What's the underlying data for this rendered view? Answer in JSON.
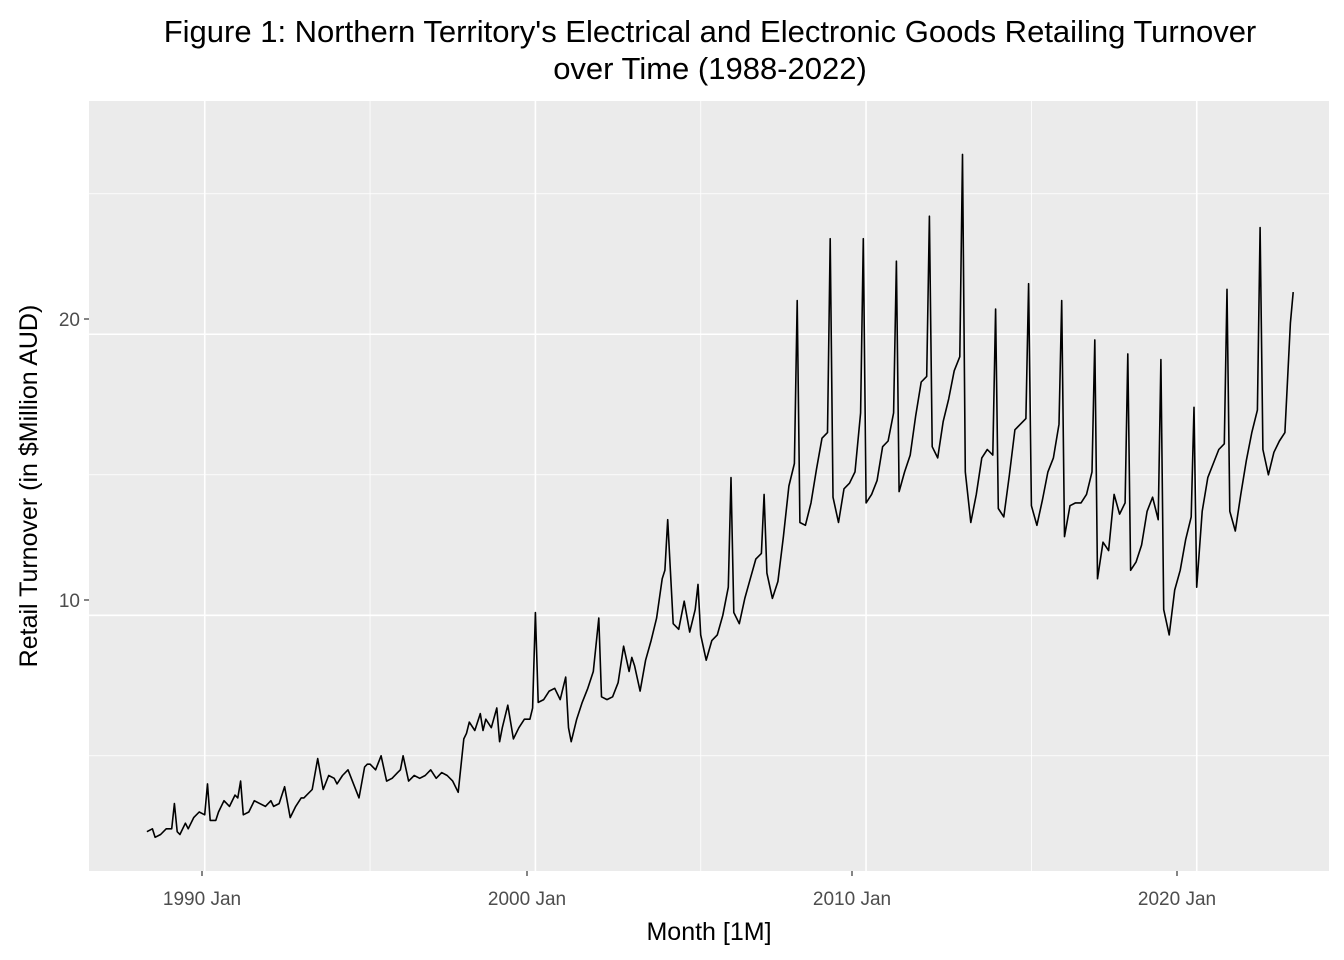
{
  "chart_data": {
    "type": "line",
    "title_line1": "Figure 1: Northern Territory's Electrical and Electronic Goods Retailing Turnover",
    "title_line2": "over Time (1988-2022)",
    "xlabel": "Month [1M]",
    "ylabel": "Retail Turnover (in $Million AUD)",
    "x_ticks": [
      "1990 Jan",
      "2000 Jan",
      "2010 Jan",
      "2020 Jan"
    ],
    "y_ticks": [
      "10",
      "20"
    ],
    "y_tick_values": [
      10,
      20
    ],
    "xlim": [
      "1986-07",
      "2024-01"
    ],
    "ylim": [
      0.9,
      28.3
    ],
    "grid": true,
    "background": "#ebebeb",
    "gridline_color": "#ffffff",
    "line_color": "#000000",
    "series": [
      {
        "x": [
          "1988-04",
          "1988-06",
          "1988-07",
          "1988-09",
          "1988-11",
          "1989-01",
          "1989-02",
          "1989-03",
          "1989-04",
          "1989-06",
          "1989-07",
          "1989-09",
          "1989-11",
          "1990-01",
          "1990-02",
          "1990-03",
          "1990-05",
          "1990-06",
          "1990-08",
          "1990-10",
          "1990-12",
          "1991-01",
          "1991-02",
          "1991-03",
          "1991-05",
          "1991-07",
          "1991-09",
          "1991-11",
          "1992-01",
          "1992-02",
          "1992-04",
          "1992-06",
          "1992-08",
          "1992-10",
          "1992-12",
          "1993-01",
          "1993-02",
          "1993-04",
          "1993-06",
          "1993-08",
          "1993-10",
          "1993-12",
          "1994-01",
          "1994-03",
          "1994-05",
          "1994-07",
          "1994-09",
          "1994-11",
          "1994-12",
          "1995-01",
          "1995-03",
          "1995-05",
          "1995-07",
          "1995-09",
          "1995-11",
          "1995-12",
          "1996-01",
          "1996-03",
          "1996-05",
          "1996-07",
          "1996-09",
          "1996-11",
          "1997-01",
          "1997-03",
          "1997-05",
          "1997-07",
          "1997-09",
          "1997-11",
          "1997-12",
          "1998-01",
          "1998-03",
          "1998-05",
          "1998-06",
          "1998-07",
          "1998-09",
          "1998-11",
          "1998-12",
          "1999-01",
          "1999-03",
          "1999-05",
          "1999-07",
          "1999-09",
          "1999-11",
          "1999-12",
          "2000-01",
          "2000-02",
          "2000-04",
          "2000-06",
          "2000-08",
          "2000-10",
          "2000-12",
          "2001-01",
          "2001-02",
          "2001-04",
          "2001-06",
          "2001-08",
          "2001-10",
          "2001-12",
          "2002-01",
          "2002-03",
          "2002-05",
          "2002-07",
          "2002-09",
          "2002-11",
          "2002-12",
          "2003-01",
          "2003-03",
          "2003-05",
          "2003-07",
          "2003-09",
          "2003-11",
          "2003-12",
          "2004-01",
          "2004-03",
          "2004-05",
          "2004-07",
          "2004-09",
          "2004-11",
          "2004-12",
          "2005-01",
          "2005-03",
          "2005-05",
          "2005-07",
          "2005-09",
          "2005-11",
          "2005-12",
          "2006-01",
          "2006-03",
          "2006-05",
          "2006-07",
          "2006-09",
          "2006-11",
          "2006-12",
          "2007-01",
          "2007-03",
          "2007-05",
          "2007-07",
          "2007-09",
          "2007-11",
          "2007-12",
          "2008-01",
          "2008-03",
          "2008-05",
          "2008-07",
          "2008-09",
          "2008-11",
          "2008-12",
          "2009-01",
          "2009-03",
          "2009-05",
          "2009-07",
          "2009-09",
          "2009-11",
          "2009-12",
          "2010-01",
          "2010-03",
          "2010-05",
          "2010-07",
          "2010-09",
          "2010-11",
          "2010-12",
          "2011-01",
          "2011-03",
          "2011-05",
          "2011-07",
          "2011-09",
          "2011-11",
          "2011-12",
          "2012-01",
          "2012-03",
          "2012-05",
          "2012-07",
          "2012-09",
          "2012-11",
          "2012-12",
          "2013-01",
          "2013-03",
          "2013-05",
          "2013-07",
          "2013-09",
          "2013-11",
          "2013-12",
          "2014-01",
          "2014-03",
          "2014-05",
          "2014-07",
          "2014-09",
          "2014-11",
          "2014-12",
          "2015-01",
          "2015-03",
          "2015-05",
          "2015-07",
          "2015-09",
          "2015-11",
          "2015-12",
          "2016-01",
          "2016-03",
          "2016-05",
          "2016-07",
          "2016-09",
          "2016-11",
          "2016-12",
          "2017-01",
          "2017-03",
          "2017-05",
          "2017-07",
          "2017-09",
          "2017-11",
          "2017-12",
          "2018-01",
          "2018-03",
          "2018-05",
          "2018-07",
          "2018-09",
          "2018-11",
          "2018-12",
          "2019-01",
          "2019-03",
          "2019-05",
          "2019-07",
          "2019-09",
          "2019-11",
          "2019-12",
          "2020-01",
          "2020-03",
          "2020-05",
          "2020-07",
          "2020-09",
          "2020-11",
          "2020-12",
          "2021-01",
          "2021-03",
          "2021-05",
          "2021-07",
          "2021-09",
          "2021-11",
          "2021-12",
          "2022-01",
          "2022-03",
          "2022-05",
          "2022-07",
          "2022-09",
          "2022-11",
          "2022-12"
        ],
        "values": [
          2.3,
          2.4,
          2.1,
          2.2,
          2.4,
          2.4,
          3.3,
          2.3,
          2.2,
          2.6,
          2.4,
          2.8,
          3.0,
          2.9,
          4.0,
          2.7,
          2.7,
          3.0,
          3.4,
          3.2,
          3.6,
          3.5,
          4.1,
          2.9,
          3.0,
          3.4,
          3.3,
          3.2,
          3.4,
          3.2,
          3.3,
          3.9,
          2.8,
          3.2,
          3.5,
          3.5,
          3.6,
          3.8,
          4.9,
          3.8,
          4.3,
          4.2,
          4.0,
          4.3,
          4.5,
          4.0,
          3.5,
          4.6,
          4.7,
          4.7,
          4.5,
          5.0,
          4.1,
          4.2,
          4.4,
          4.5,
          5.0,
          4.1,
          4.3,
          4.2,
          4.3,
          4.5,
          4.2,
          4.4,
          4.3,
          4.1,
          3.7,
          5.6,
          5.8,
          6.2,
          5.9,
          6.5,
          5.9,
          6.3,
          6.0,
          6.7,
          5.5,
          6.0,
          6.8,
          5.6,
          6.0,
          6.3,
          6.3,
          6.7,
          10.1,
          6.9,
          7.0,
          7.3,
          7.4,
          7.0,
          7.8,
          6.0,
          5.5,
          6.3,
          6.9,
          7.4,
          8.0,
          9.9,
          7.1,
          7.0,
          7.1,
          7.6,
          8.9,
          8.0,
          8.5,
          8.2,
          7.3,
          8.4,
          9.1,
          9.9,
          11.3,
          11.6,
          13.4,
          9.7,
          9.5,
          10.5,
          9.4,
          10.2,
          11.1,
          9.3,
          8.4,
          9.1,
          9.3,
          10.0,
          11.0,
          14.9,
          10.1,
          9.7,
          10.6,
          11.3,
          12.0,
          12.2,
          14.3,
          11.5,
          10.6,
          11.2,
          12.8,
          14.6,
          15.4,
          21.2,
          13.3,
          13.2,
          14.0,
          15.2,
          16.3,
          16.5,
          23.4,
          14.2,
          13.3,
          14.5,
          14.7,
          15.1,
          17.2,
          23.4,
          14.0,
          14.3,
          14.8,
          16.0,
          16.2,
          17.2,
          22.6,
          14.4,
          15.1,
          15.7,
          17.1,
          18.3,
          18.5,
          24.2,
          16.0,
          15.6,
          16.9,
          17.7,
          18.7,
          19.2,
          26.4,
          15.1,
          13.3,
          14.3,
          15.6,
          15.9,
          15.7,
          20.9,
          13.8,
          13.5,
          15.0,
          16.6,
          16.8,
          17.0,
          21.8,
          13.9,
          13.2,
          14.1,
          15.1,
          15.6,
          16.8,
          21.2,
          12.8,
          13.9,
          14.0,
          14.0,
          14.3,
          15.1,
          19.8,
          11.3,
          12.6,
          12.3,
          14.3,
          13.6,
          14.0,
          19.3,
          11.6,
          11.9,
          12.5,
          13.7,
          14.2,
          13.4,
          19.1,
          10.2,
          9.3,
          10.9,
          11.6,
          12.7,
          13.5,
          17.4,
          11.0,
          13.7,
          14.9,
          15.4,
          15.9,
          16.1,
          21.6,
          13.7,
          13.0,
          14.3,
          15.5,
          16.5,
          17.3,
          23.8,
          15.9,
          15.0,
          15.8,
          16.2,
          16.5,
          20.4,
          21.5
        ]
      }
    ]
  }
}
